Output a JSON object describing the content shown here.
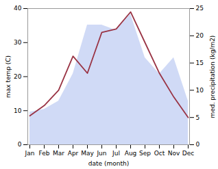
{
  "chart_data": {
    "type": "line",
    "categories": [
      "Jan",
      "Feb",
      "Mar",
      "Apr",
      "May",
      "Jun",
      "Jul",
      "Aug",
      "Sep",
      "Oct",
      "Nov",
      "Dec"
    ],
    "series": [
      {
        "type": "area",
        "axis": "y2",
        "color": "#aabbee",
        "values": [
          6,
          6.5,
          8,
          13,
          22,
          22,
          21,
          24,
          16,
          13,
          16,
          8
        ]
      },
      {
        "type": "line",
        "color": "#993344",
        "values": [
          8.5,
          11.5,
          16,
          26,
          21,
          33,
          34,
          39,
          30,
          21,
          14,
          8
        ]
      }
    ],
    "xlabel": "date (month)",
    "ylabel": "max temp (C)",
    "y2label": "med. precipitation (kg/m2)",
    "ylim": [
      0,
      40
    ],
    "yticks": [
      0,
      10,
      20,
      30,
      40
    ],
    "y2lim": [
      0,
      25
    ],
    "y2ticks": [
      0,
      5,
      10,
      15,
      20,
      25
    ],
    "grid": false
  }
}
